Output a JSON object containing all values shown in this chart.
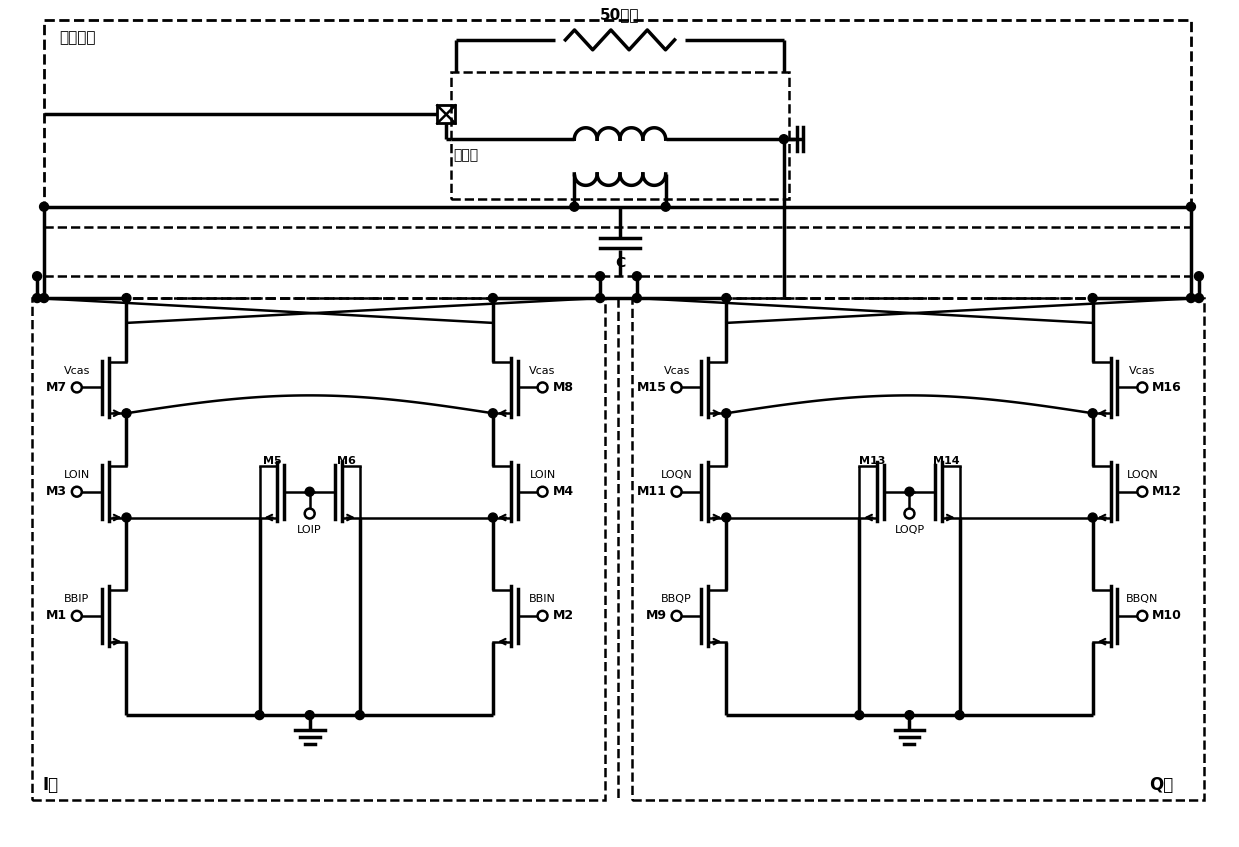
{
  "bg_color": "#ffffff",
  "line_color": "#000000",
  "fig_width": 12.39,
  "fig_height": 8.47,
  "labels": {
    "ohm": "50欧姆",
    "resonance": "谐振网络",
    "transformer": "变压器",
    "cap_label": "C",
    "i_core": "I核",
    "q_core": "Q核",
    "m1": "M1",
    "m2": "M2",
    "m3": "M3",
    "m4": "M4",
    "m5": "M5",
    "m6": "M6",
    "m7": "M7",
    "m8": "M8",
    "m9": "M9",
    "m10": "M10",
    "m11": "M11",
    "m12": "M12",
    "m13": "M13",
    "m14": "M14",
    "m15": "M15",
    "m16": "M16",
    "vcas": "Vcas",
    "loin": "LOIN",
    "loip": "LOIP",
    "loqn": "LOQN",
    "loqp": "LOQP",
    "bbip": "BBIP",
    "bbin": "BBIN",
    "bbqp": "BBQP",
    "bbqn": "BBQN"
  }
}
